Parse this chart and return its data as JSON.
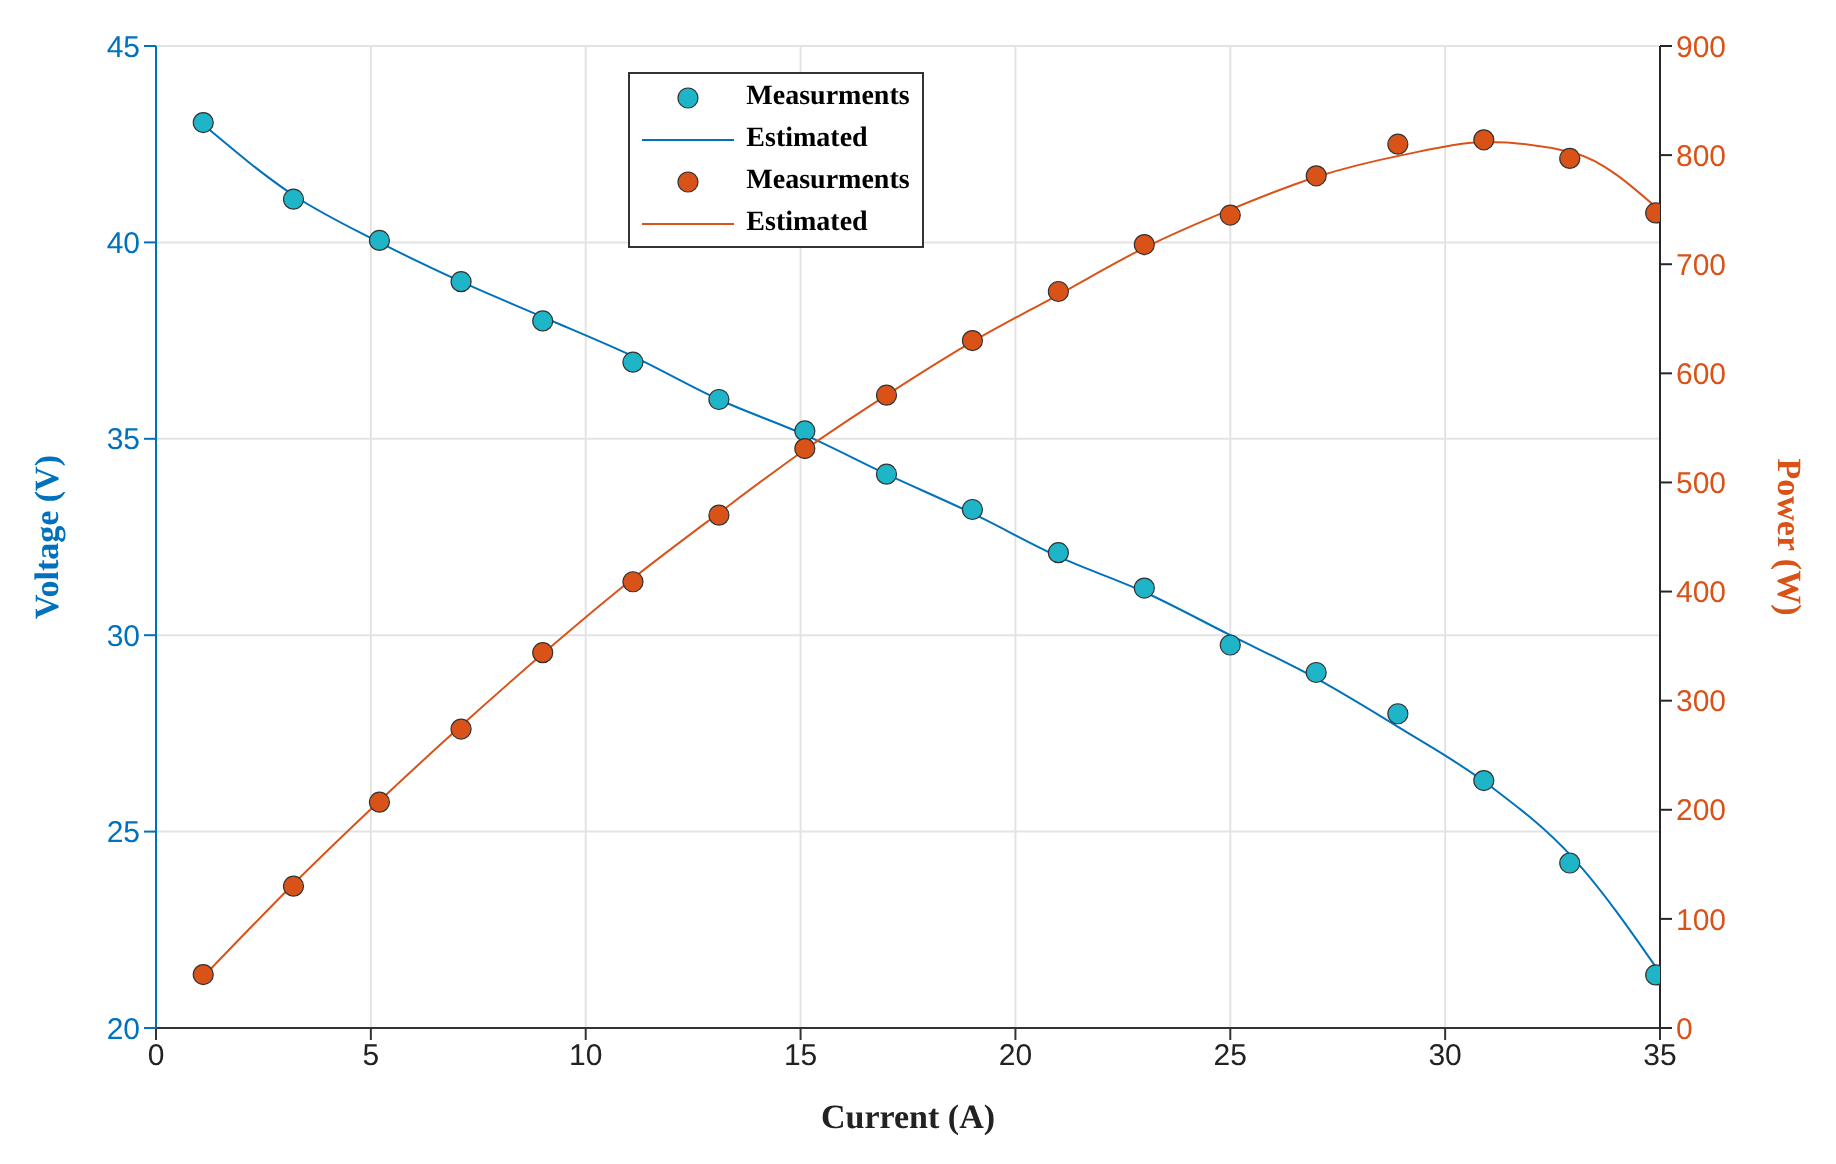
{
  "chart_data": {
    "type": "scatter",
    "xlabel": "Current (A)",
    "ylabel": "Voltage (V)",
    "y2label": "Power (W)",
    "xlim": [
      0,
      35
    ],
    "xticks": [
      0,
      5,
      10,
      15,
      20,
      25,
      30,
      35
    ],
    "ylim": [
      20,
      45
    ],
    "yticks": [
      20,
      25,
      30,
      35,
      40,
      45
    ],
    "y2lim": [
      0,
      900
    ],
    "y2ticks": [
      0,
      100,
      200,
      300,
      400,
      500,
      600,
      700,
      800,
      900
    ],
    "grid": true,
    "legend": "top",
    "series": [
      {
        "name": "Measurments",
        "marker": "circle",
        "axis": "y",
        "color": "#1fb5c9",
        "x": [
          1.1,
          3.2,
          5.2,
          7.1,
          9.0,
          11.1,
          13.1,
          15.1,
          17.0,
          19.0,
          21.0,
          23.0,
          25.0,
          27.0,
          28.9,
          30.9,
          32.9,
          34.9
        ],
        "values": [
          43.05,
          41.1,
          40.05,
          39.0,
          38.0,
          36.95,
          36.0,
          35.2,
          34.1,
          33.2,
          32.1,
          31.2,
          29.75,
          29.05,
          28.0,
          26.3,
          24.2,
          21.35
        ]
      },
      {
        "name": "Estimated",
        "type": "line",
        "marker": "none",
        "axis": "y",
        "color": "#0072bd",
        "x": [
          1.1,
          3.2,
          5.2,
          7.1,
          9.0,
          11.1,
          13.1,
          15.1,
          17.0,
          19.0,
          21.0,
          23.0,
          25.0,
          27.0,
          29.0,
          31.0,
          33.0,
          35.0
        ],
        "values": [
          43.0,
          41.2,
          40.0,
          39.0,
          38.1,
          37.1,
          36.0,
          35.1,
          34.1,
          33.1,
          32.0,
          31.1,
          30.0,
          28.9,
          27.6,
          26.2,
          24.3,
          21.4
        ]
      },
      {
        "name": "Measurments",
        "marker": "circle",
        "axis": "y2",
        "color": "#d95319",
        "x": [
          1.1,
          3.2,
          5.2,
          7.1,
          9.0,
          11.1,
          13.1,
          15.1,
          17.0,
          19.0,
          21.0,
          23.0,
          25.0,
          27.0,
          28.9,
          30.9,
          32.9,
          34.9
        ],
        "values": [
          49,
          130,
          207,
          274,
          344,
          409,
          470,
          531,
          580,
          630,
          675,
          718,
          745,
          781,
          810,
          814,
          797,
          747
        ]
      },
      {
        "name": "Estimated",
        "type": "line",
        "marker": "none",
        "axis": "y2",
        "color": "#d95319",
        "x": [
          1.1,
          3.2,
          5.2,
          7.1,
          9.0,
          11.1,
          13.1,
          15.1,
          17.0,
          19.0,
          21.0,
          23.0,
          25.0,
          27.0,
          29.0,
          31.0,
          33.0,
          35.0
        ],
        "values": [
          47,
          132,
          208,
          277,
          343,
          412,
          472,
          530,
          580,
          629,
          672,
          715,
          750,
          780,
          800,
          812,
          802,
          749
        ]
      }
    ]
  }
}
